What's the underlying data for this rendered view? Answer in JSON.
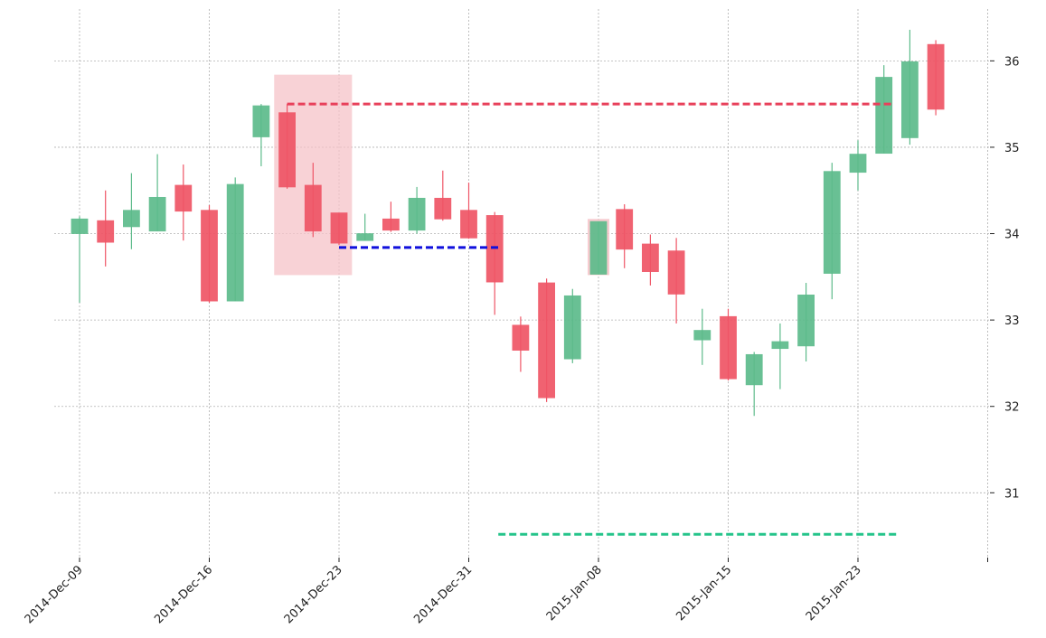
{
  "chart_data": {
    "type": "candlestick",
    "title": "",
    "xlabel": "",
    "ylabel": "",
    "ylim": [
      30.25,
      36.6
    ],
    "grid": true,
    "y_ticks": [
      31,
      32,
      33,
      34,
      35,
      36
    ],
    "x_tick_labels": [
      "2014-Dec-09",
      "2014-Dec-16",
      "2014-Dec-23",
      "2014-Dec-31",
      "2015-Jan-08",
      "2015-Jan-15",
      "2015-Jan-23",
      ""
    ],
    "colors": {
      "up": "#5dbb8b",
      "down": "#ef5566",
      "highlight": "#f6c3c8",
      "resistance": "#e8405a",
      "support": "#1010dd",
      "target": "#25c48a"
    },
    "candles": [
      {
        "date": "2014-12-09",
        "open": 34.0,
        "high": 34.2,
        "low": 33.2,
        "close": 34.17
      },
      {
        "date": "2014-12-10",
        "open": 34.15,
        "high": 34.5,
        "low": 33.62,
        "close": 33.9
      },
      {
        "date": "2014-12-11",
        "open": 34.08,
        "high": 34.7,
        "low": 33.82,
        "close": 34.27
      },
      {
        "date": "2014-12-12",
        "open": 34.03,
        "high": 34.92,
        "low": 34.03,
        "close": 34.42
      },
      {
        "date": "2014-12-15",
        "open": 34.56,
        "high": 34.8,
        "low": 33.92,
        "close": 34.26
      },
      {
        "date": "2014-12-16",
        "open": 34.27,
        "high": 34.33,
        "low": 33.2,
        "close": 33.22
      },
      {
        "date": "2014-12-17",
        "open": 33.22,
        "high": 34.65,
        "low": 33.22,
        "close": 34.57
      },
      {
        "date": "2014-12-18",
        "open": 35.12,
        "high": 35.5,
        "low": 34.78,
        "close": 35.48
      },
      {
        "date": "2014-12-19",
        "open": 35.4,
        "high": 35.5,
        "low": 34.52,
        "close": 34.54
      },
      {
        "date": "2014-12-22",
        "open": 34.56,
        "high": 34.82,
        "low": 33.96,
        "close": 34.03
      },
      {
        "date": "2014-12-23",
        "open": 34.24,
        "high": 34.24,
        "low": 33.87,
        "close": 33.89
      },
      {
        "date": "2014-12-24",
        "open": 33.92,
        "high": 34.23,
        "low": 33.92,
        "close": 34.0
      },
      {
        "date": "2014-12-26",
        "open": 34.17,
        "high": 34.37,
        "low": 34.02,
        "close": 34.04
      },
      {
        "date": "2014-12-29",
        "open": 34.04,
        "high": 34.54,
        "low": 34.0,
        "close": 34.41
      },
      {
        "date": "2014-12-30",
        "open": 34.41,
        "high": 34.73,
        "low": 34.15,
        "close": 34.17
      },
      {
        "date": "2014-12-31",
        "open": 34.27,
        "high": 34.59,
        "low": 33.94,
        "close": 33.95
      },
      {
        "date": "2015-01-02",
        "open": 34.21,
        "high": 34.25,
        "low": 33.06,
        "close": 33.44
      },
      {
        "date": "2015-01-05",
        "open": 32.94,
        "high": 33.04,
        "low": 32.4,
        "close": 32.65
      },
      {
        "date": "2015-01-06",
        "open": 33.43,
        "high": 33.48,
        "low": 32.05,
        "close": 32.1
      },
      {
        "date": "2015-01-07",
        "open": 32.55,
        "high": 33.36,
        "low": 32.5,
        "close": 33.28
      },
      {
        "date": "2015-01-08",
        "open": 33.53,
        "high": 34.14,
        "low": 33.53,
        "close": 34.14
      },
      {
        "date": "2015-01-09",
        "open": 34.28,
        "high": 34.34,
        "low": 33.6,
        "close": 33.82
      },
      {
        "date": "2015-01-12",
        "open": 33.88,
        "high": 33.99,
        "low": 33.4,
        "close": 33.56
      },
      {
        "date": "2015-01-13",
        "open": 33.8,
        "high": 33.95,
        "low": 32.96,
        "close": 33.3
      },
      {
        "date": "2015-01-14",
        "open": 32.77,
        "high": 33.13,
        "low": 32.48,
        "close": 32.88
      },
      {
        "date": "2015-01-15",
        "open": 33.04,
        "high": 33.13,
        "low": 32.3,
        "close": 32.32
      },
      {
        "date": "2015-01-16",
        "open": 32.25,
        "high": 32.63,
        "low": 31.89,
        "close": 32.6
      },
      {
        "date": "2015-01-20",
        "open": 32.67,
        "high": 32.96,
        "low": 32.2,
        "close": 32.75
      },
      {
        "date": "2015-01-21",
        "open": 32.7,
        "high": 33.43,
        "low": 32.52,
        "close": 33.29
      },
      {
        "date": "2015-01-22",
        "open": 33.54,
        "high": 34.82,
        "low": 33.24,
        "close": 34.72
      },
      {
        "date": "2015-01-23",
        "open": 34.71,
        "high": 35.08,
        "low": 34.5,
        "close": 34.92
      },
      {
        "date": "2015-01-26",
        "open": 34.93,
        "high": 35.95,
        "low": 34.93,
        "close": 35.81
      },
      {
        "date": "2015-01-27",
        "open": 35.11,
        "high": 36.36,
        "low": 35.03,
        "close": 35.99
      },
      {
        "date": "2015-01-28",
        "open": 36.19,
        "high": 36.24,
        "low": 35.37,
        "close": 35.44
      }
    ],
    "annotations": {
      "pattern_box": {
        "start": "2014-12-19",
        "end": "2014-12-23",
        "low": 33.52,
        "high": 35.84
      },
      "signal_box": {
        "date": "2015-01-08",
        "low": 33.52,
        "high": 34.17
      },
      "resistance_line": {
        "start": "2014-12-19",
        "end": "2015-01-26",
        "value": 35.5
      },
      "support_line": {
        "start": "2014-12-23",
        "end": "2015-01-02",
        "value": 33.84
      },
      "target_line": {
        "start": "2015-01-02",
        "end": "2015-01-26",
        "value": 30.52
      }
    }
  }
}
